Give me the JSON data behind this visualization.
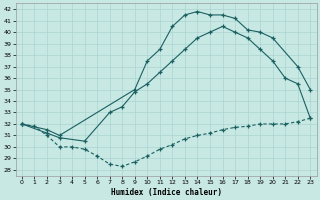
{
  "xlabel": "Humidex (Indice chaleur)",
  "bg_color": "#c8e8e4",
  "grid_color": "#aad4d0",
  "line_color": "#1a6060",
  "xlim": [
    -0.5,
    23.5
  ],
  "ylim": [
    27.5,
    42.5
  ],
  "xticks": [
    0,
    1,
    2,
    3,
    4,
    5,
    6,
    7,
    8,
    9,
    10,
    11,
    12,
    13,
    14,
    15,
    16,
    17,
    18,
    19,
    20,
    21,
    22,
    23
  ],
  "yticks": [
    28,
    29,
    30,
    31,
    32,
    33,
    34,
    35,
    36,
    37,
    38,
    39,
    40,
    41,
    42
  ],
  "line_diagonal_x": [
    0,
    2,
    3,
    5,
    7,
    8,
    9,
    10,
    11,
    12,
    13,
    14,
    15,
    16,
    17,
    18,
    19,
    20,
    21,
    22,
    23
  ],
  "line_diagonal_y": [
    32.0,
    31.2,
    30.8,
    30.5,
    33.0,
    33.5,
    34.8,
    35.5,
    36.5,
    37.5,
    38.5,
    39.5,
    40.0,
    40.5,
    40.0,
    39.5,
    38.5,
    37.5,
    36.0,
    35.5,
    32.5
  ],
  "line_peaked_x": [
    0,
    2,
    3,
    9,
    10,
    11,
    12,
    13,
    14,
    15,
    16,
    17,
    18,
    19,
    20,
    22,
    23
  ],
  "line_peaked_y": [
    32.0,
    31.5,
    31.0,
    35.0,
    37.5,
    38.5,
    40.5,
    41.5,
    41.8,
    41.5,
    41.5,
    41.2,
    40.2,
    40.0,
    39.5,
    37.0,
    35.0
  ],
  "line_bottom_x": [
    0,
    1,
    2,
    3,
    4,
    5,
    6,
    7,
    8,
    9,
    10,
    11,
    12,
    13,
    14,
    15,
    16,
    17,
    18,
    19,
    20,
    21,
    22,
    23
  ],
  "line_bottom_y": [
    32.0,
    31.8,
    31.0,
    30.0,
    30.0,
    29.8,
    29.2,
    28.5,
    28.3,
    28.7,
    29.2,
    29.8,
    30.2,
    30.7,
    31.0,
    31.2,
    31.5,
    31.7,
    31.8,
    32.0,
    32.0,
    32.0,
    32.2,
    32.5
  ]
}
